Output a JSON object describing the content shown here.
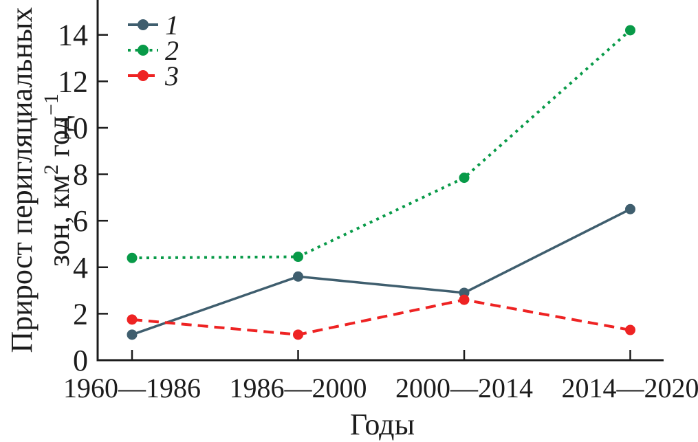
{
  "chart_data": {
    "type": "line",
    "title": "",
    "xlabel": "Годы",
    "ylabel": "Прирост перигляциальных зон, км² год⁻¹",
    "ylabel_line1": "Прирост перигляциальных",
    "ylabel_line2_parts": [
      {
        "text": "зон, км"
      },
      {
        "text": "2",
        "sup": true
      },
      {
        "text": " год",
        "sup": false
      },
      {
        "text": "−1",
        "sup": true
      }
    ],
    "categories": [
      "1960—1986",
      "1986—2000",
      "2000—2014",
      "2014—2020"
    ],
    "series": [
      {
        "name": "1",
        "values": [
          1.1,
          3.6,
          2.9,
          6.5
        ],
        "color": "#3f5e6e",
        "line_style": "solid"
      },
      {
        "name": "2",
        "values": [
          4.4,
          4.45,
          7.85,
          14.2
        ],
        "color": "#089a48",
        "line_style": "dotted"
      },
      {
        "name": "3",
        "values": [
          1.75,
          1.1,
          2.6,
          1.3
        ],
        "color": "#ee2323",
        "line_style": "dashed"
      }
    ],
    "yticks": [
      0,
      2,
      4,
      6,
      8,
      10,
      12,
      14
    ],
    "ylim": [
      0,
      15.5
    ],
    "legend_position": "top-left",
    "grid": false,
    "axis_color": "#1c1c1c"
  }
}
